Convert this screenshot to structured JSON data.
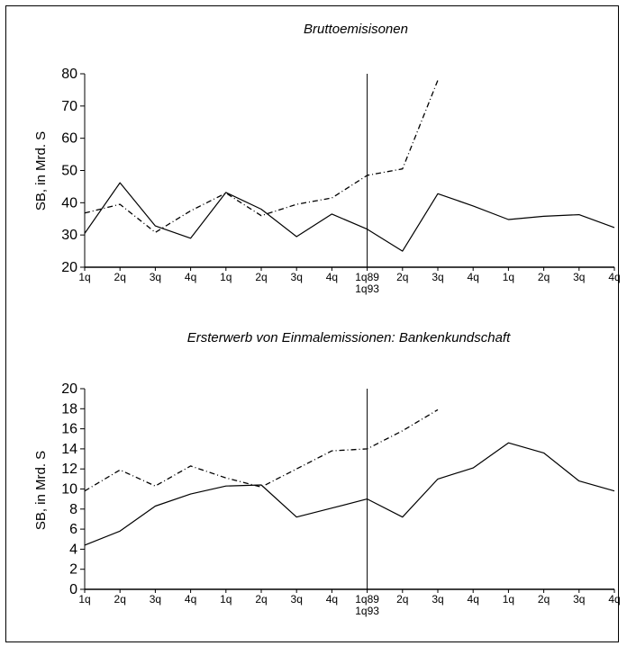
{
  "chart_data": [
    {
      "type": "line",
      "title": "Bruttoemisisonen",
      "ylabel": "SB, in Mrd. S",
      "xlabel": "",
      "ylim": [
        20,
        80
      ],
      "yticks": [
        20,
        30,
        40,
        50,
        60,
        70,
        80
      ],
      "categories": [
        "1q",
        "2q",
        "3q",
        "4q",
        "1q",
        "2q",
        "3q",
        "4q",
        "1q89",
        "2q",
        "3q",
        "4q",
        "1q",
        "2q",
        "3q",
        "4q"
      ],
      "divider_label": "1q93",
      "divider_index": 8,
      "grid": false,
      "series": [
        {
          "style": "solid",
          "values": [
            30.5,
            46.2,
            32.8,
            29.0,
            43.2,
            38.0,
            29.5,
            36.5,
            31.8,
            25.0,
            42.8,
            39.0,
            34.8,
            35.8,
            36.3,
            32.3
          ]
        },
        {
          "style": "dashed",
          "values": [
            36.8,
            39.5,
            30.8,
            37.5,
            43.0,
            36.0,
            39.5,
            41.5,
            48.5,
            50.5,
            78.0,
            null,
            null,
            null,
            null,
            null
          ]
        }
      ]
    },
    {
      "type": "line",
      "title": "Ersterwerb von Einmalemissionen: Bankenkundschaft",
      "ylabel": "SB, in Mrd. S",
      "xlabel": "",
      "ylim": [
        0,
        20
      ],
      "yticks": [
        0,
        2,
        4,
        6,
        8,
        10,
        12,
        14,
        16,
        18,
        20
      ],
      "categories": [
        "1q",
        "2q",
        "3q",
        "4q",
        "1q",
        "2q",
        "3q",
        "4q",
        "1q89",
        "2q",
        "3q",
        "4q",
        "1q",
        "2q",
        "3q",
        "4q"
      ],
      "divider_label": "1q93",
      "divider_index": 8,
      "grid": false,
      "series": [
        {
          "style": "solid",
          "values": [
            4.4,
            5.8,
            8.3,
            9.5,
            10.3,
            10.4,
            7.2,
            8.1,
            9.0,
            7.2,
            11.0,
            12.1,
            14.6,
            13.6,
            10.8,
            9.8
          ]
        },
        {
          "style": "dashed",
          "values": [
            9.8,
            11.9,
            10.3,
            12.3,
            11.1,
            10.2,
            12.0,
            13.8,
            14.0,
            15.8,
            17.9,
            null,
            null,
            null,
            null,
            null
          ]
        }
      ]
    }
  ]
}
